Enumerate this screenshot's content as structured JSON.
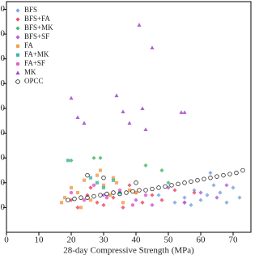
{
  "chart_data": {
    "type": "scatter",
    "x_label": "28-day Compressive Strength (MPa)",
    "xlim": [
      0,
      75.5
    ],
    "xticks": [
      0,
      10,
      20,
      30,
      40,
      50,
      60,
      70
    ],
    "ylim": [
      0,
      9.31
    ],
    "yticks": [
      {
        "value": 1,
        "label": "0"
      },
      {
        "value": 2,
        "label": "0"
      },
      {
        "value": 3,
        "label": "0"
      },
      {
        "value": 4,
        "label": "0"
      },
      {
        "value": 5,
        "label": "0"
      },
      {
        "value": 6,
        "label": "0"
      },
      {
        "value": 7,
        "label": "0"
      },
      {
        "value": 8,
        "label": "0"
      },
      {
        "value": 9,
        "label": "0"
      }
    ],
    "legend": "top-left",
    "series": [
      {
        "name": "BFS",
        "color": "#7ea6e0",
        "marker": "diamond",
        "x": [
          47,
          52,
          55,
          58,
          60,
          62,
          64,
          66,
          68,
          70,
          72,
          57,
          63
        ],
        "y": [
          1.5,
          1.2,
          1.4,
          1.7,
          1.3,
          1.5,
          1.9,
          1.6,
          1.2,
          1.8,
          1.4,
          1.1,
          2.4
        ]
      },
      {
        "name": "BFS+FA",
        "color": "#e8506a",
        "marker": "diamond",
        "x": [
          20,
          22,
          25,
          28,
          30,
          33,
          36,
          40,
          42,
          45,
          48,
          52,
          55,
          58,
          26,
          38
        ],
        "y": [
          1.3,
          1.0,
          1.5,
          1.2,
          1.1,
          1.4,
          1.0,
          1.6,
          1.2,
          1.5,
          1.3,
          1.7,
          1.2,
          1.6,
          1.8,
          1.9
        ]
      },
      {
        "name": "BFS+MK",
        "color": "#4cb870",
        "marker": "diamond",
        "x": [
          20,
          27,
          29,
          43,
          48,
          50
        ],
        "y": [
          2.9,
          3.0,
          3.0,
          2.7,
          2.5,
          2.0
        ]
      },
      {
        "name": "BFS+SF",
        "color": "#b860e0",
        "marker": "diamond",
        "x": [
          30,
          40,
          50,
          55,
          60,
          65,
          68,
          45
        ],
        "y": [
          1.5,
          1.3,
          1.8,
          1.2,
          1.6,
          1.4,
          1.9,
          1.1
        ]
      },
      {
        "name": "FA",
        "color": "#f0a050",
        "marker": "square",
        "x": [
          18,
          20,
          22,
          24,
          26,
          28,
          30,
          32,
          34,
          36,
          38,
          40,
          29,
          23,
          33,
          17
        ],
        "y": [
          1.4,
          1.8,
          1.6,
          2.1,
          1.3,
          2.3,
          1.9,
          1.5,
          2.0,
          1.2,
          1.7,
          1.6,
          2.5,
          1.0,
          2.2,
          1.2
        ]
      },
      {
        "name": "FA+MK",
        "color": "#40b8a8",
        "marker": "square",
        "x": [
          19,
          26,
          28,
          30,
          33,
          35
        ],
        "y": [
          2.9,
          2.2,
          2.0,
          1.8,
          2.1,
          1.6
        ]
      },
      {
        "name": "FA+SF",
        "color": "#e060c8",
        "marker": "circle",
        "x": [
          20,
          24,
          27,
          31,
          35,
          39,
          43
        ],
        "y": [
          1.6,
          1.3,
          1.9,
          1.4,
          1.7,
          1.1,
          1.5
        ]
      },
      {
        "name": "MK",
        "color": "#a048c8",
        "marker": "triangle",
        "x": [
          20,
          41,
          45,
          22,
          24,
          34,
          36,
          38,
          42,
          43,
          55,
          54
        ],
        "y": [
          5.42,
          8.37,
          7.45,
          4.64,
          4.41,
          5.52,
          4.87,
          4.41,
          5.0,
          4.15,
          4.84,
          4.84
        ]
      },
      {
        "name": "OPCC",
        "color": "#000000",
        "marker": "open-circle",
        "x": [
          19,
          21,
          23,
          25,
          27,
          29,
          31,
          33,
          35,
          37,
          39,
          41,
          43,
          45,
          47,
          49,
          51,
          53,
          55,
          57,
          59,
          61,
          63,
          65,
          67,
          69,
          71,
          73,
          25,
          30,
          40
        ],
        "y": [
          1.3,
          1.35,
          1.4,
          1.4,
          1.45,
          1.5,
          1.55,
          1.6,
          1.55,
          1.6,
          1.65,
          1.7,
          1.7,
          1.75,
          1.8,
          1.85,
          1.9,
          1.95,
          2.0,
          2.05,
          2.1,
          2.15,
          2.2,
          2.25,
          2.3,
          2.35,
          2.4,
          2.5,
          2.3,
          2.2,
          2.0
        ]
      }
    ]
  }
}
